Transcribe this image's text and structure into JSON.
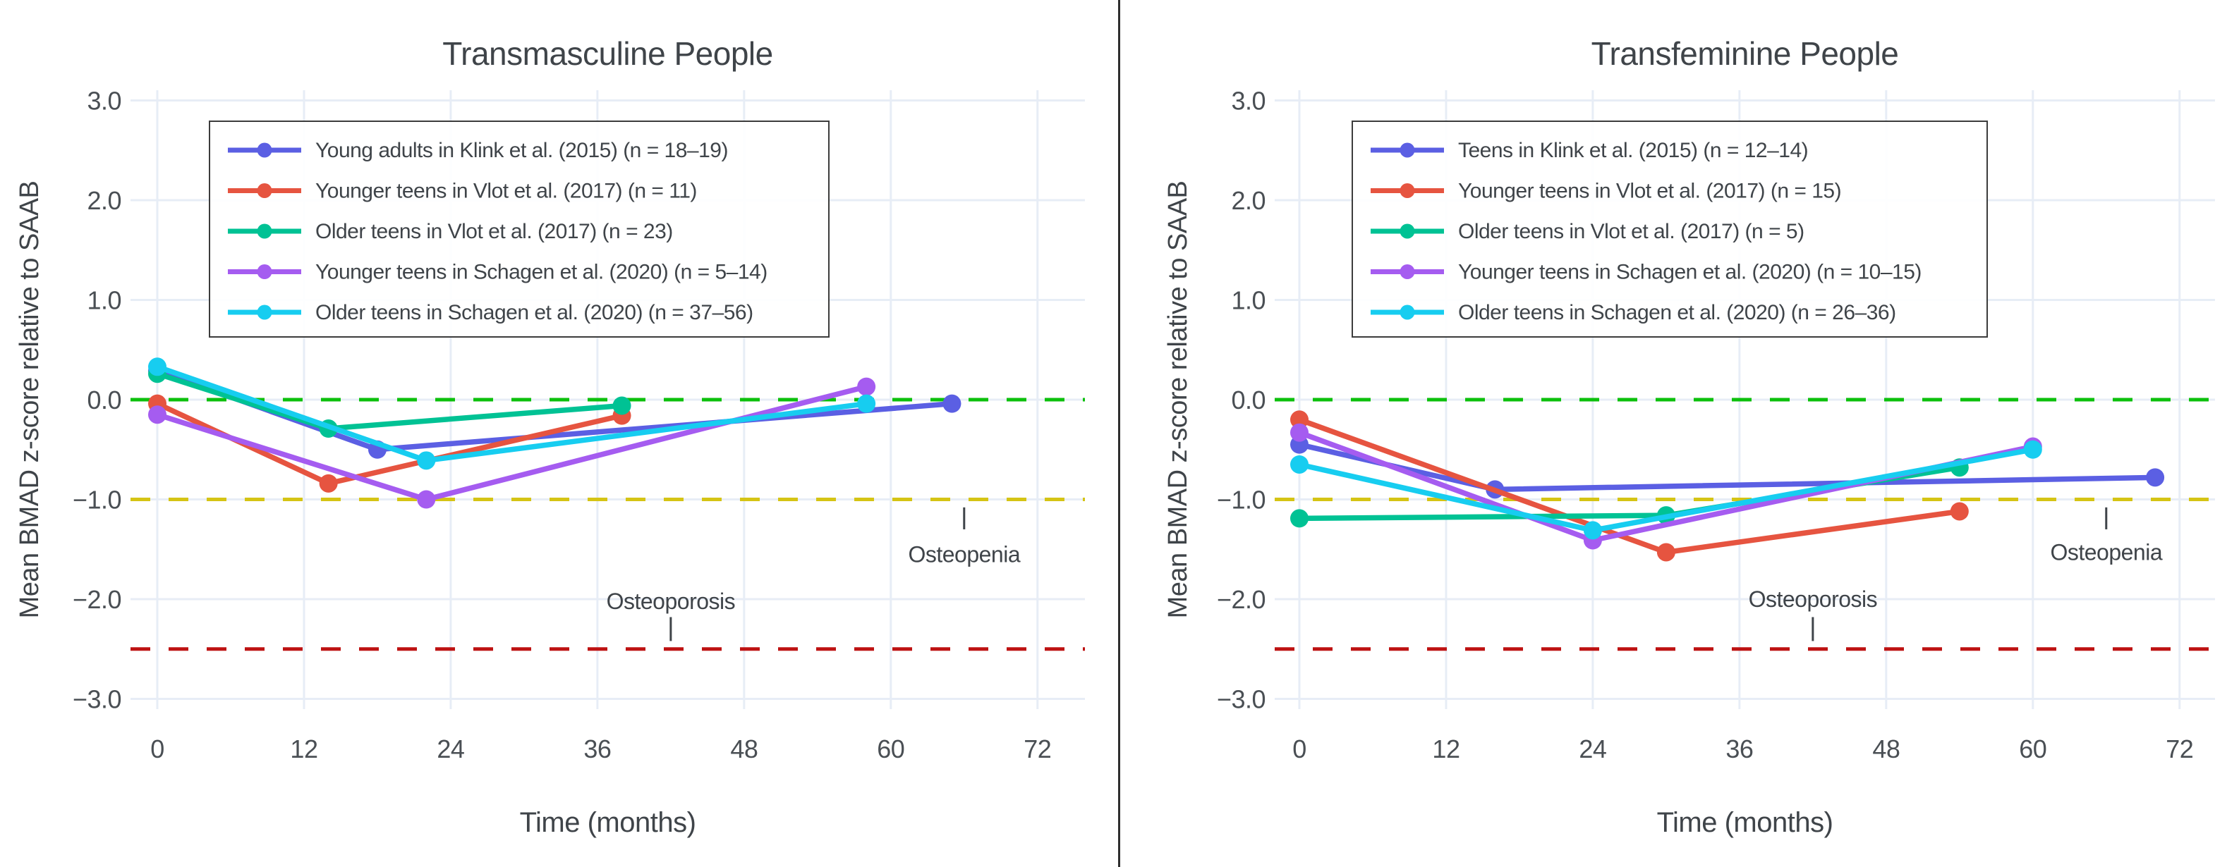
{
  "page": {
    "background": "#ffffff",
    "divider_color": "#2e2e2e"
  },
  "colors": {
    "grid": "#e7edf6",
    "text": "#3f4449",
    "tick_text": "#4a4f54",
    "legend_border": "#3c3c3c",
    "legend_background": "#ffffff"
  },
  "chart_data": [
    {
      "type": "line",
      "title": "Transmasculine People",
      "xlabel": "Time (months)",
      "ylabel": "Mean BMAD z-score relative to SAAB",
      "x_ticks": [
        0,
        12,
        24,
        36,
        48,
        60,
        72
      ],
      "y_ticks": [
        3,
        2,
        1,
        0,
        -1,
        -2,
        -3
      ],
      "y_tick_labels": [
        "3.0",
        "2.0",
        "1.0",
        "0.0",
        "−1.0",
        "−2.0",
        "−3.0"
      ],
      "xlim": [
        -2.2,
        76
      ],
      "ylim": [
        -3.1,
        3.1
      ],
      "grid": true,
      "legend_position": "upper-left-inside",
      "reference_lines": [
        {
          "id": "zero-reference",
          "z": 0,
          "color": "#0cc00c",
          "style": "dashed"
        },
        {
          "id": "osteopenia-threshold",
          "z": -1,
          "color": "#d5c414",
          "style": "dashed"
        },
        {
          "id": "osteoporosis-threshold",
          "z": -2.5,
          "color": "#bd1212",
          "style": "dashed"
        }
      ],
      "series": [
        {
          "id": "klink",
          "name": "Young adults in Klink et al. (2015) (n = 18–19)",
          "color": "#5b5fe3",
          "x": [
            0,
            18,
            65
          ],
          "y": [
            0.29,
            -0.5,
            -0.04
          ]
        },
        {
          "id": "vlot-younger",
          "name": "Younger teens in Vlot et al. (2017) (n = 11)",
          "color": "#e65440",
          "x": [
            0,
            14,
            38
          ],
          "y": [
            -0.04,
            -0.84,
            -0.16
          ]
        },
        {
          "id": "vlot-older",
          "name": "Older teens in Vlot et al. (2017) (n = 23)",
          "color": "#00c294",
          "x": [
            0,
            14,
            38
          ],
          "y": [
            0.26,
            -0.29,
            -0.06
          ]
        },
        {
          "id": "schagen-younger",
          "name": "Younger teens in Schagen et al. (2020) (n = 5–14)",
          "color": "#a55cf0",
          "x": [
            0,
            22,
            58
          ],
          "y": [
            -0.15,
            -1.0,
            0.13
          ]
        },
        {
          "id": "schagen-older",
          "name": "Older teens in Schagen et al. (2020) (n = 37–56)",
          "color": "#17cdf0",
          "x": [
            0,
            22,
            58
          ],
          "y": [
            0.33,
            -0.61,
            -0.04
          ]
        }
      ],
      "annotations": [
        {
          "text": "Osteoporosis",
          "x": 42,
          "text_y": -2.02,
          "tick": [
            -2.18,
            -2.42
          ]
        },
        {
          "text": "Osteopenia",
          "x": 66,
          "text_y": -1.55,
          "tick": [
            -1.08,
            -1.3
          ]
        }
      ]
    },
    {
      "type": "line",
      "title": "Transfeminine People",
      "xlabel": "Time (months)",
      "ylabel": "Mean BMAD z-score relative to SAAB",
      "x_ticks": [
        0,
        12,
        24,
        36,
        48,
        60,
        72
      ],
      "y_ticks": [
        3,
        2,
        1,
        0,
        -1,
        -2,
        -3
      ],
      "y_tick_labels": [
        "3.0",
        "2.0",
        "1.0",
        "0.0",
        "−1.0",
        "−2.0",
        "−3.0"
      ],
      "xlim": [
        -2.2,
        76
      ],
      "ylim": [
        -3.1,
        3.1
      ],
      "grid": true,
      "legend_position": "upper-left-inside",
      "reference_lines": [
        {
          "id": "zero-reference",
          "z": 0,
          "color": "#0cc00c",
          "style": "dashed"
        },
        {
          "id": "osteopenia-threshold",
          "z": -1,
          "color": "#d5c414",
          "style": "dashed"
        },
        {
          "id": "osteoporosis-threshold",
          "z": -2.5,
          "color": "#bd1212",
          "style": "dashed"
        }
      ],
      "series": [
        {
          "id": "klink",
          "name": "Teens in Klink et al. (2015) (n = 12–14)",
          "color": "#5b5fe3",
          "x": [
            0,
            16,
            70
          ],
          "y": [
            -0.45,
            -0.9,
            -0.78
          ]
        },
        {
          "id": "vlot-younger",
          "name": "Younger teens in Vlot et al. (2017) (n = 15)",
          "color": "#e65440",
          "x": [
            0,
            30,
            54
          ],
          "y": [
            -0.2,
            -1.53,
            -1.12
          ]
        },
        {
          "id": "vlot-older",
          "name": "Older teens in Vlot et al. (2017) (n = 5)",
          "color": "#00c294",
          "x": [
            0,
            30,
            54
          ],
          "y": [
            -1.19,
            -1.16,
            -0.68
          ]
        },
        {
          "id": "schagen-younger",
          "name": "Younger teens in Schagen et al. (2020) (n = 10–15)",
          "color": "#a55cf0",
          "x": [
            0,
            24,
            60
          ],
          "y": [
            -0.33,
            -1.41,
            -0.47
          ]
        },
        {
          "id": "schagen-older",
          "name": "Older teens in Schagen et al. (2020) (n = 26–36)",
          "color": "#17cdf0",
          "x": [
            0,
            24,
            60
          ],
          "y": [
            -0.65,
            -1.31,
            -0.5
          ]
        }
      ],
      "annotations": [
        {
          "text": "Osteoporosis",
          "x": 42,
          "text_y": -2.0,
          "tick": [
            -2.18,
            -2.42
          ]
        },
        {
          "text": "Osteopenia",
          "x": 66,
          "text_y": -1.53,
          "tick": [
            -1.08,
            -1.3
          ]
        }
      ]
    }
  ]
}
